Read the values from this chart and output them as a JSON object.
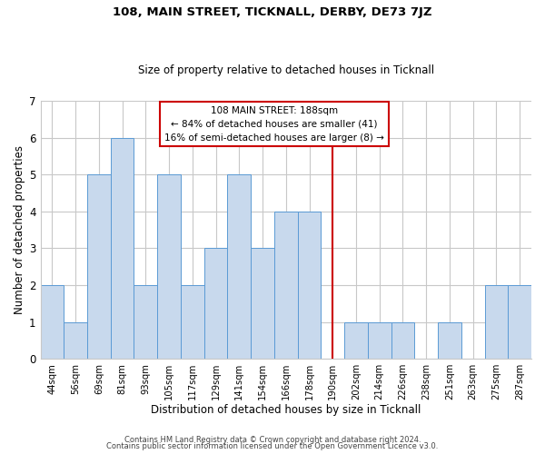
{
  "title": "108, MAIN STREET, TICKNALL, DERBY, DE73 7JZ",
  "subtitle": "Size of property relative to detached houses in Ticknall",
  "xlabel": "Distribution of detached houses by size in Ticknall",
  "ylabel": "Number of detached properties",
  "bin_labels": [
    "44sqm",
    "56sqm",
    "69sqm",
    "81sqm",
    "93sqm",
    "105sqm",
    "117sqm",
    "129sqm",
    "141sqm",
    "154sqm",
    "166sqm",
    "178sqm",
    "190sqm",
    "202sqm",
    "214sqm",
    "226sqm",
    "238sqm",
    "251sqm",
    "263sqm",
    "275sqm",
    "287sqm"
  ],
  "bar_heights": [
    2,
    1,
    5,
    6,
    2,
    5,
    2,
    3,
    5,
    3,
    4,
    4,
    0,
    1,
    1,
    1,
    0,
    1,
    0,
    2,
    2
  ],
  "bar_color": "#c8d9ed",
  "bar_edgecolor": "#5b9bd5",
  "vline_label_idx": 12,
  "vline_color": "#cc0000",
  "annotation_title": "108 MAIN STREET: 188sqm",
  "annotation_line1": "← 84% of detached houses are smaller (41)",
  "annotation_line2": "16% of semi-detached houses are larger (8) →",
  "annotation_box_facecolor": "#ffffff",
  "annotation_box_edgecolor": "#cc0000",
  "footer1": "Contains HM Land Registry data © Crown copyright and database right 2024.",
  "footer2": "Contains public sector information licensed under the Open Government Licence v3.0.",
  "ylim": [
    0,
    7
  ],
  "background_color": "#ffffff",
  "grid_color": "#c8c8c8"
}
